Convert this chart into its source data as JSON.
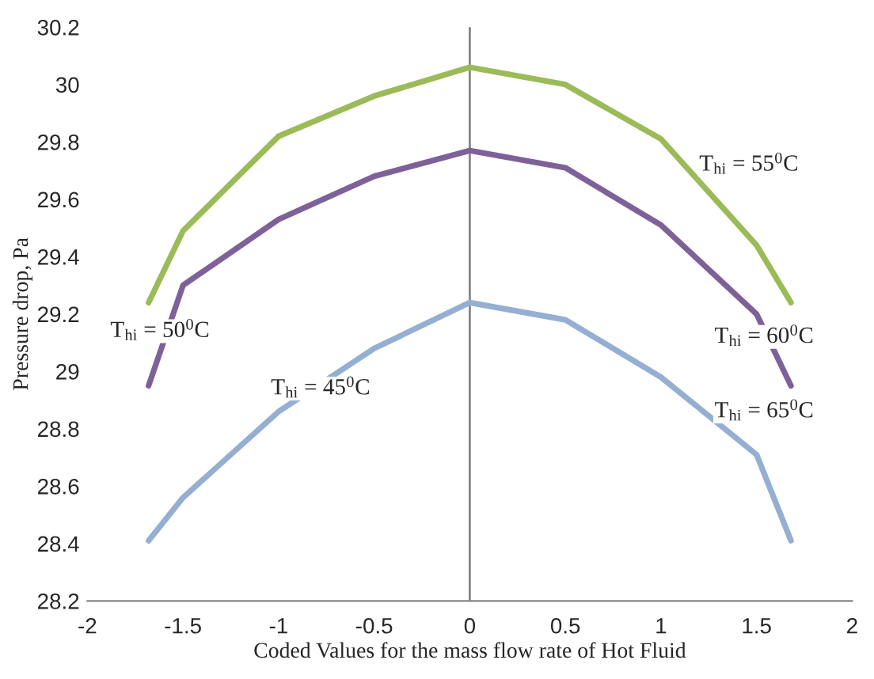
{
  "chart_data": {
    "type": "line",
    "xlabel": "Coded Values for the mass flow rate of Hot Fluid",
    "ylabel": "Pressure drop, Pa",
    "x": [
      -1.68,
      -1.5,
      -1,
      -0.5,
      0,
      0.5,
      1,
      1.5,
      1.68
    ],
    "series": [
      {
        "color": "#9bbb59",
        "values": [
          29.24,
          29.49,
          29.82,
          29.96,
          30.06,
          30.0,
          29.81,
          29.44,
          29.24
        ]
      },
      {
        "color": "#7f6199",
        "values": [
          28.95,
          29.3,
          29.53,
          29.68,
          29.77,
          29.71,
          29.51,
          29.2,
          28.95
        ]
      },
      {
        "color": "#95afd3",
        "values": [
          28.41,
          28.56,
          28.86,
          29.08,
          29.24,
          29.18,
          28.98,
          28.71,
          28.41
        ]
      }
    ],
    "xlim": [
      -2,
      2
    ],
    "ylim": [
      28.2,
      30.2
    ],
    "xticks": [
      -2,
      -1.5,
      -1,
      -0.5,
      0,
      0.5,
      1,
      1.5,
      2
    ],
    "yticks": [
      28.2,
      28.4,
      28.6,
      28.8,
      29,
      29.2,
      29.4,
      29.6,
      29.8,
      30,
      30.2
    ],
    "ref_lines": [
      {
        "axis": "x",
        "value": 0,
        "color": "#868686"
      }
    ],
    "annotations": [
      "T$_{hi}$ = 55$^{0}$C",
      "T$_{hi}$ = 50$^{0}$C",
      "T$_{hi}$ = 45$^{0}$C",
      "T$_{hi}$ = 60$^{0}$C",
      "T$_{hi}$ = 65$^{0}$C"
    ],
    "grid": false,
    "marker": "none",
    "line_style": "solid"
  }
}
